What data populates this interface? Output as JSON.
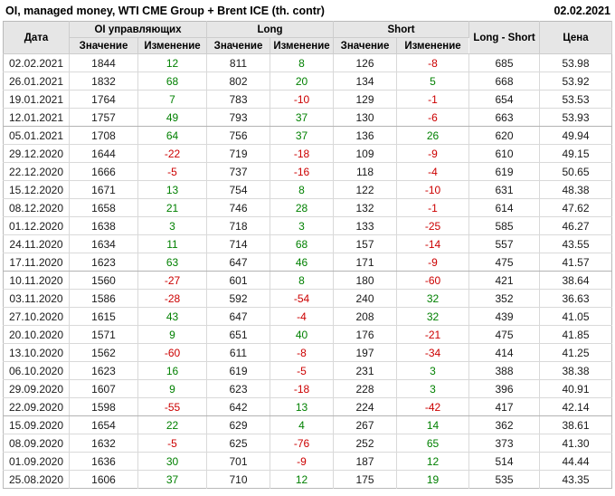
{
  "title": "OI, managed money, WTI CME Group + Brent ICE (th. contr)",
  "report_date": "02.02.2021",
  "colors": {
    "positive_change": "#008000",
    "negative_change": "#cc0000",
    "header_background": "#e6e6e6",
    "grid_border": "#d9d9d9",
    "group_border": "#b3b3b3"
  },
  "table": {
    "headers": {
      "date": "Дата",
      "oi_group": "OI управляющих",
      "long_group": "Long",
      "short_group": "Short",
      "long_short": "Long - Short",
      "price": "Цена",
      "value": "Значение",
      "change": "Изменение"
    },
    "group_end_rows": [
      4,
      12,
      20
    ],
    "rows": [
      {
        "date": "02.02.2021",
        "oi": "1844",
        "oi_chg": "12",
        "long": "811",
        "long_chg": "8",
        "short": "126",
        "short_chg": "-8",
        "long_short": "685",
        "price": "53.98"
      },
      {
        "date": "26.01.2021",
        "oi": "1832",
        "oi_chg": "68",
        "long": "802",
        "long_chg": "20",
        "short": "134",
        "short_chg": "5",
        "long_short": "668",
        "price": "53.92"
      },
      {
        "date": "19.01.2021",
        "oi": "1764",
        "oi_chg": "7",
        "long": "783",
        "long_chg": "-10",
        "short": "129",
        "short_chg": "-1",
        "long_short": "654",
        "price": "53.53"
      },
      {
        "date": "12.01.2021",
        "oi": "1757",
        "oi_chg": "49",
        "long": "793",
        "long_chg": "37",
        "short": "130",
        "short_chg": "-6",
        "long_short": "663",
        "price": "53.93"
      },
      {
        "date": "05.01.2021",
        "oi": "1708",
        "oi_chg": "64",
        "long": "756",
        "long_chg": "37",
        "short": "136",
        "short_chg": "26",
        "long_short": "620",
        "price": "49.94"
      },
      {
        "date": "29.12.2020",
        "oi": "1644",
        "oi_chg": "-22",
        "long": "719",
        "long_chg": "-18",
        "short": "109",
        "short_chg": "-9",
        "long_short": "610",
        "price": "49.15"
      },
      {
        "date": "22.12.2020",
        "oi": "1666",
        "oi_chg": "-5",
        "long": "737",
        "long_chg": "-16",
        "short": "118",
        "short_chg": "-4",
        "long_short": "619",
        "price": "50.65"
      },
      {
        "date": "15.12.2020",
        "oi": "1671",
        "oi_chg": "13",
        "long": "754",
        "long_chg": "8",
        "short": "122",
        "short_chg": "-10",
        "long_short": "631",
        "price": "48.38"
      },
      {
        "date": "08.12.2020",
        "oi": "1658",
        "oi_chg": "21",
        "long": "746",
        "long_chg": "28",
        "short": "132",
        "short_chg": "-1",
        "long_short": "614",
        "price": "47.62"
      },
      {
        "date": "01.12.2020",
        "oi": "1638",
        "oi_chg": "3",
        "long": "718",
        "long_chg": "3",
        "short": "133",
        "short_chg": "-25",
        "long_short": "585",
        "price": "46.27"
      },
      {
        "date": "24.11.2020",
        "oi": "1634",
        "oi_chg": "11",
        "long": "714",
        "long_chg": "68",
        "short": "157",
        "short_chg": "-14",
        "long_short": "557",
        "price": "43.55"
      },
      {
        "date": "17.11.2020",
        "oi": "1623",
        "oi_chg": "63",
        "long": "647",
        "long_chg": "46",
        "short": "171",
        "short_chg": "-9",
        "long_short": "475",
        "price": "41.57"
      },
      {
        "date": "10.11.2020",
        "oi": "1560",
        "oi_chg": "-27",
        "long": "601",
        "long_chg": "8",
        "short": "180",
        "short_chg": "-60",
        "long_short": "421",
        "price": "38.64"
      },
      {
        "date": "03.11.2020",
        "oi": "1586",
        "oi_chg": "-28",
        "long": "592",
        "long_chg": "-54",
        "short": "240",
        "short_chg": "32",
        "long_short": "352",
        "price": "36.63"
      },
      {
        "date": "27.10.2020",
        "oi": "1615",
        "oi_chg": "43",
        "long": "647",
        "long_chg": "-4",
        "short": "208",
        "short_chg": "32",
        "long_short": "439",
        "price": "41.05"
      },
      {
        "date": "20.10.2020",
        "oi": "1571",
        "oi_chg": "9",
        "long": "651",
        "long_chg": "40",
        "short": "176",
        "short_chg": "-21",
        "long_short": "475",
        "price": "41.85"
      },
      {
        "date": "13.10.2020",
        "oi": "1562",
        "oi_chg": "-60",
        "long": "611",
        "long_chg": "-8",
        "short": "197",
        "short_chg": "-34",
        "long_short": "414",
        "price": "41.25"
      },
      {
        "date": "06.10.2020",
        "oi": "1623",
        "oi_chg": "16",
        "long": "619",
        "long_chg": "-5",
        "short": "231",
        "short_chg": "3",
        "long_short": "388",
        "price": "38.38"
      },
      {
        "date": "29.09.2020",
        "oi": "1607",
        "oi_chg": "9",
        "long": "623",
        "long_chg": "-18",
        "short": "228",
        "short_chg": "3",
        "long_short": "396",
        "price": "40.91"
      },
      {
        "date": "22.09.2020",
        "oi": "1598",
        "oi_chg": "-55",
        "long": "642",
        "long_chg": "13",
        "short": "224",
        "short_chg": "-42",
        "long_short": "417",
        "price": "42.14"
      },
      {
        "date": "15.09.2020",
        "oi": "1654",
        "oi_chg": "22",
        "long": "629",
        "long_chg": "4",
        "short": "267",
        "short_chg": "14",
        "long_short": "362",
        "price": "38.61"
      },
      {
        "date": "08.09.2020",
        "oi": "1632",
        "oi_chg": "-5",
        "long": "625",
        "long_chg": "-76",
        "short": "252",
        "short_chg": "65",
        "long_short": "373",
        "price": "41.30"
      },
      {
        "date": "01.09.2020",
        "oi": "1636",
        "oi_chg": "30",
        "long": "701",
        "long_chg": "-9",
        "short": "187",
        "short_chg": "12",
        "long_short": "514",
        "price": "44.44"
      },
      {
        "date": "25.08.2020",
        "oi": "1606",
        "oi_chg": "37",
        "long": "710",
        "long_chg": "12",
        "short": "175",
        "short_chg": "19",
        "long_short": "535",
        "price": "43.35"
      }
    ]
  }
}
